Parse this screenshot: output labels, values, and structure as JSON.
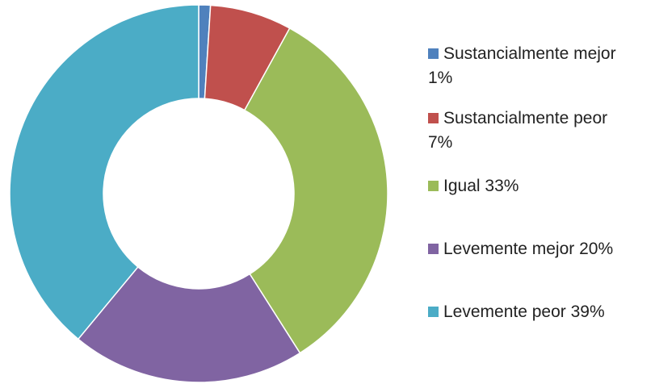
{
  "chart_data": {
    "type": "donut",
    "categories": [
      "Sustancialmente mejor",
      "Sustancialmente peor",
      "Igual",
      "Levemente mejor",
      "Levemente peor"
    ],
    "values": [
      1,
      7,
      33,
      20,
      39
    ],
    "value_labels": [
      "1%",
      "7%",
      "33%",
      "20%",
      "39%"
    ],
    "colors": [
      "#4f81bd",
      "#c0504d",
      "#9bbb59",
      "#8064a2",
      "#4bacc6"
    ],
    "legend": "right"
  }
}
